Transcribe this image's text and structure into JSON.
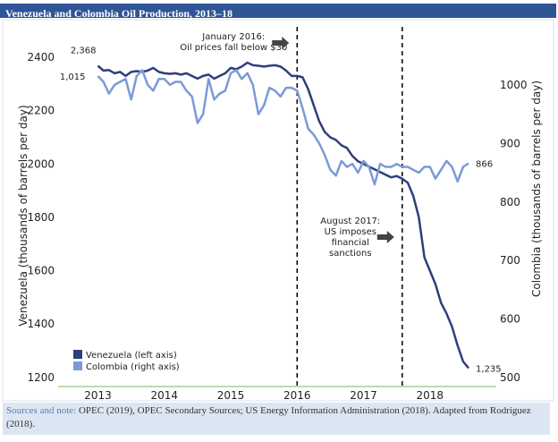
{
  "chart_data": {
    "type": "line",
    "title": "Venezuela and Colombia Oil Production, 2013–18",
    "ylabel": "Venezuela (thousands of barrels per day)",
    "y2label": "Colombia (thousands of barrels per day)",
    "x": [
      2013.0,
      2013.083,
      2013.167,
      2013.25,
      2013.333,
      2013.417,
      2013.5,
      2013.583,
      2013.667,
      2013.75,
      2013.833,
      2013.917,
      2014.0,
      2014.083,
      2014.167,
      2014.25,
      2014.333,
      2014.417,
      2014.5,
      2014.583,
      2014.667,
      2014.75,
      2014.833,
      2014.917,
      2015.0,
      2015.083,
      2015.167,
      2015.25,
      2015.333,
      2015.417,
      2015.5,
      2015.583,
      2015.667,
      2015.75,
      2015.833,
      2015.917,
      2016.0,
      2016.083,
      2016.167,
      2016.25,
      2016.333,
      2016.417,
      2016.5,
      2016.583,
      2016.667,
      2016.75,
      2016.833,
      2016.917,
      2017.0,
      2017.083,
      2017.167,
      2017.25,
      2017.333,
      2017.417,
      2017.5,
      2017.583,
      2017.667,
      2017.75,
      2017.833,
      2017.917,
      2018.0,
      2018.083,
      2018.167,
      2018.25,
      2018.333,
      2018.417,
      2018.5,
      2018.583
    ],
    "series": [
      {
        "name": "Venezuela (left axis)",
        "color": "#2e3f7c",
        "axis": "y",
        "values": [
          2368,
          2350,
          2352,
          2340,
          2345,
          2330,
          2345,
          2348,
          2345,
          2350,
          2360,
          2345,
          2340,
          2338,
          2340,
          2335,
          2340,
          2330,
          2320,
          2330,
          2335,
          2320,
          2330,
          2340,
          2360,
          2355,
          2365,
          2380,
          2370,
          2368,
          2365,
          2368,
          2370,
          2365,
          2350,
          2330,
          2330,
          2325,
          2280,
          2220,
          2160,
          2120,
          2100,
          2090,
          2070,
          2060,
          2030,
          2010,
          2000,
          1990,
          1980,
          1970,
          1960,
          1950,
          1955,
          1945,
          1930,
          1880,
          1800,
          1650,
          1600,
          1550,
          1480,
          1440,
          1390,
          1320,
          1260,
          1235
        ],
        "value_labels": [
          "2,368",
          null,
          null,
          null,
          null,
          null,
          null,
          null,
          null,
          null,
          null,
          null,
          null,
          null,
          null,
          null,
          null,
          null,
          null,
          null,
          null,
          null,
          null,
          null,
          null,
          null,
          null,
          null,
          null,
          null,
          null,
          null,
          null,
          null,
          null,
          null,
          null,
          null,
          null,
          null,
          null,
          null,
          null,
          null,
          null,
          null,
          null,
          null,
          null,
          null,
          null,
          null,
          null,
          null,
          null,
          null,
          null,
          null,
          null,
          null,
          null,
          null,
          null,
          null,
          null,
          null,
          null,
          "1,235"
        ]
      },
      {
        "name": "Colombia (right axis)",
        "color": "#7b9ad6",
        "axis": "y2",
        "values": [
          1015,
          1005,
          985,
          1000,
          1005,
          1010,
          975,
          1015,
          1025,
          1000,
          990,
          1010,
          1010,
          1000,
          1005,
          1005,
          990,
          980,
          935,
          950,
          1010,
          975,
          985,
          990,
          1020,
          1025,
          1010,
          1020,
          1000,
          950,
          965,
          995,
          990,
          980,
          995,
          995,
          990,
          960,
          925,
          915,
          900,
          880,
          855,
          845,
          870,
          860,
          865,
          850,
          870,
          860,
          830,
          865,
          860,
          860,
          865,
          860,
          860,
          855,
          850,
          860,
          860,
          840,
          855,
          870,
          860,
          835,
          860,
          866
        ],
        "value_labels": [
          "1,015",
          null,
          null,
          null,
          null,
          null,
          null,
          null,
          null,
          null,
          null,
          null,
          null,
          null,
          null,
          null,
          null,
          null,
          null,
          null,
          null,
          null,
          null,
          null,
          null,
          null,
          null,
          null,
          null,
          null,
          null,
          null,
          null,
          null,
          null,
          null,
          null,
          null,
          null,
          null,
          null,
          null,
          null,
          null,
          null,
          null,
          null,
          null,
          null,
          null,
          null,
          null,
          null,
          null,
          null,
          null,
          null,
          null,
          null,
          null,
          null,
          null,
          null,
          null,
          null,
          null,
          null,
          "866"
        ]
      }
    ],
    "xlim": [
      2012.4,
      2019.0
    ],
    "xticks": [
      2013,
      2014,
      2015,
      2016,
      2017,
      2018
    ],
    "ylim": [
      1166,
      2514
    ],
    "yticks": [
      1200,
      1400,
      1600,
      1800,
      2000,
      2200,
      2400
    ],
    "y2lim": [
      485,
      1099
    ],
    "y2ticks": [
      500,
      600,
      700,
      800,
      900,
      1000
    ],
    "events": [
      {
        "x": 2016.0,
        "label": [
          "January 2016:",
          "Oil prices fall below $30"
        ]
      },
      {
        "x": 2017.583,
        "label": [
          "August 2017:",
          "US imposes",
          "financial",
          "sanctions"
        ]
      }
    ],
    "legend": "lower left",
    "source": {
      "head": "Sources and note:",
      "text": "OPEC (2019), OPEC Secondary Sources; US Energy Information Administration (2018). Adapted from Rodríguez (2018)."
    }
  }
}
